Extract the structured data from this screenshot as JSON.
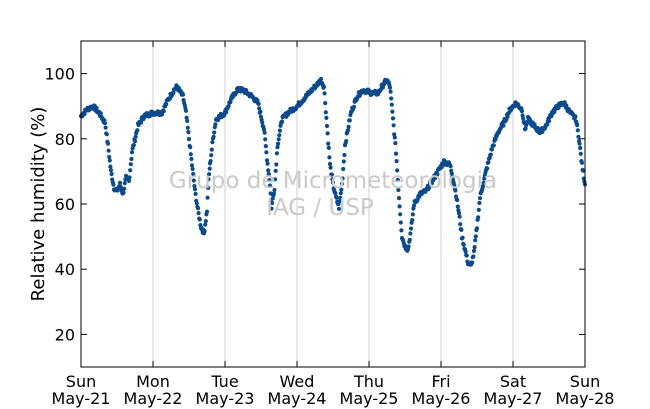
{
  "chart_data": {
    "type": "scatter",
    "title": "",
    "xlabel": "",
    "ylabel": "Relative humidity (%)",
    "ylim": [
      10,
      110
    ],
    "yticks": [
      20,
      40,
      60,
      80,
      100
    ],
    "xlim": [
      "2017-05-21 00:00",
      "2017-05-28 00:00"
    ],
    "xticks": [
      {
        "date": "2017-05-21",
        "label1": "Sun",
        "label2": "May-21"
      },
      {
        "date": "2017-05-22",
        "label1": "Mon",
        "label2": "May-22"
      },
      {
        "date": "2017-05-23",
        "label1": "Tue",
        "label2": "May-23"
      },
      {
        "date": "2017-05-24",
        "label1": "Wed",
        "label2": "May-24"
      },
      {
        "date": "2017-05-25",
        "label1": "Thu",
        "label2": "May-25"
      },
      {
        "date": "2017-05-26",
        "label1": "Fri",
        "label2": "May-26"
      },
      {
        "date": "2017-05-27",
        "label1": "Sat",
        "label2": "May-27"
      },
      {
        "date": "2017-05-28",
        "label1": "Sun",
        "label2": "May-28"
      }
    ],
    "grid": "vertical",
    "marker_color": "#0b4a8b",
    "series": [
      {
        "points": [
          [
            "2017-05-21 00:00",
            87
          ],
          [
            "2017-05-21 02:00",
            89
          ],
          [
            "2017-05-21 04:00",
            90
          ],
          [
            "2017-05-21 06:00",
            88
          ],
          [
            "2017-05-21 08:00",
            85
          ],
          [
            "2017-05-21 09:00",
            78
          ],
          [
            "2017-05-21 10:00",
            70
          ],
          [
            "2017-05-21 11:00",
            65
          ],
          [
            "2017-05-21 12:00",
            64
          ],
          [
            "2017-05-21 13:00",
            66
          ],
          [
            "2017-05-21 14:00",
            63
          ],
          [
            "2017-05-21 15:00",
            68
          ],
          [
            "2017-05-21 16:00",
            67
          ],
          [
            "2017-05-21 17:00",
            76
          ],
          [
            "2017-05-21 19:00",
            84
          ],
          [
            "2017-05-21 21:00",
            87
          ],
          [
            "2017-05-22 00:00",
            88
          ],
          [
            "2017-05-22 03:00",
            88
          ],
          [
            "2017-05-22 05:00",
            92
          ],
          [
            "2017-05-22 07:00",
            95
          ],
          [
            "2017-05-22 08:00",
            96
          ],
          [
            "2017-05-22 10:00",
            93
          ],
          [
            "2017-05-22 11:00",
            88
          ],
          [
            "2017-05-22 12:00",
            80
          ],
          [
            "2017-05-22 13:00",
            72
          ],
          [
            "2017-05-22 14:00",
            64
          ],
          [
            "2017-05-22 15:00",
            58
          ],
          [
            "2017-05-22 16:00",
            53
          ],
          [
            "2017-05-22 17:00",
            51
          ],
          [
            "2017-05-22 18:00",
            58
          ],
          [
            "2017-05-22 18:30",
            67
          ],
          [
            "2017-05-22 19:00",
            72
          ],
          [
            "2017-05-22 20:00",
            80
          ],
          [
            "2017-05-22 21:00",
            86
          ],
          [
            "2017-05-23 00:00",
            88
          ],
          [
            "2017-05-23 02:00",
            92
          ],
          [
            "2017-05-23 04:00",
            95
          ],
          [
            "2017-05-23 06:00",
            95
          ],
          [
            "2017-05-23 09:00",
            93
          ],
          [
            "2017-05-23 11:00",
            91
          ],
          [
            "2017-05-23 13:00",
            83
          ],
          [
            "2017-05-23 14:00",
            74
          ],
          [
            "2017-05-23 15:00",
            66
          ],
          [
            "2017-05-23 15:30",
            59
          ],
          [
            "2017-05-23 16:30",
            65
          ],
          [
            "2017-05-23 17:30",
            78
          ],
          [
            "2017-05-23 19:00",
            86
          ],
          [
            "2017-05-23 21:00",
            88
          ],
          [
            "2017-05-24 00:00",
            90
          ],
          [
            "2017-05-24 03:00",
            93
          ],
          [
            "2017-05-24 06:00",
            96
          ],
          [
            "2017-05-24 08:00",
            98
          ],
          [
            "2017-05-24 09:00",
            96
          ],
          [
            "2017-05-24 10:00",
            84
          ],
          [
            "2017-05-24 11:00",
            72
          ],
          [
            "2017-05-24 12:00",
            66
          ],
          [
            "2017-05-24 13:00",
            62
          ],
          [
            "2017-05-24 14:00",
            59
          ],
          [
            "2017-05-24 15:00",
            66
          ],
          [
            "2017-05-24 16:00",
            78
          ],
          [
            "2017-05-24 18:00",
            88
          ],
          [
            "2017-05-24 20:00",
            93
          ],
          [
            "2017-05-24 22:00",
            95
          ],
          [
            "2017-05-25 01:00",
            94
          ],
          [
            "2017-05-25 03:00",
            94
          ],
          [
            "2017-05-25 05:00",
            97
          ],
          [
            "2017-05-25 06:00",
            98
          ],
          [
            "2017-05-25 07:00",
            96
          ],
          [
            "2017-05-25 08:00",
            86
          ],
          [
            "2017-05-25 09:00",
            76
          ],
          [
            "2017-05-25 10:00",
            62
          ],
          [
            "2017-05-25 11:00",
            50
          ],
          [
            "2017-05-25 12:00",
            47
          ],
          [
            "2017-05-25 13:00",
            46
          ],
          [
            "2017-05-25 14:00",
            52
          ],
          [
            "2017-05-25 15:00",
            60
          ],
          [
            "2017-05-25 17:00",
            63
          ],
          [
            "2017-05-25 19:00",
            64
          ],
          [
            "2017-05-25 21:00",
            67
          ],
          [
            "2017-05-25 23:00",
            70
          ],
          [
            "2017-05-26 01:00",
            73
          ],
          [
            "2017-05-26 03:00",
            72
          ],
          [
            "2017-05-26 04:00",
            68
          ],
          [
            "2017-05-26 05:00",
            63
          ],
          [
            "2017-05-26 06:00",
            57
          ],
          [
            "2017-05-26 07:00",
            50
          ],
          [
            "2017-05-26 08:00",
            46
          ],
          [
            "2017-05-26 09:00",
            42
          ],
          [
            "2017-05-26 10:00",
            41
          ],
          [
            "2017-05-26 11:00",
            45
          ],
          [
            "2017-05-26 12:00",
            53
          ],
          [
            "2017-05-26 13:00",
            62
          ],
          [
            "2017-05-26 15:00",
            70
          ],
          [
            "2017-05-26 17:00",
            77
          ],
          [
            "2017-05-26 19:00",
            82
          ],
          [
            "2017-05-26 21:00",
            85
          ],
          [
            "2017-05-26 23:00",
            89
          ],
          [
            "2017-05-27 01:00",
            91
          ],
          [
            "2017-05-27 03:00",
            89
          ],
          [
            "2017-05-27 04:00",
            83
          ],
          [
            "2017-05-27 05:00",
            86
          ],
          [
            "2017-05-27 07:00",
            84
          ],
          [
            "2017-05-27 09:00",
            82
          ],
          [
            "2017-05-27 11:00",
            84
          ],
          [
            "2017-05-27 13:00",
            88
          ],
          [
            "2017-05-27 15:00",
            90
          ],
          [
            "2017-05-27 17:00",
            91
          ],
          [
            "2017-05-27 19:00",
            88
          ],
          [
            "2017-05-27 21:00",
            86
          ],
          [
            "2017-05-27 22:00",
            80
          ],
          [
            "2017-05-27 23:00",
            72
          ],
          [
            "2017-05-28 00:00",
            66
          ]
        ]
      }
    ],
    "watermark": [
      "Grupo de Micrometeorologia",
      "IAG / USP"
    ]
  }
}
